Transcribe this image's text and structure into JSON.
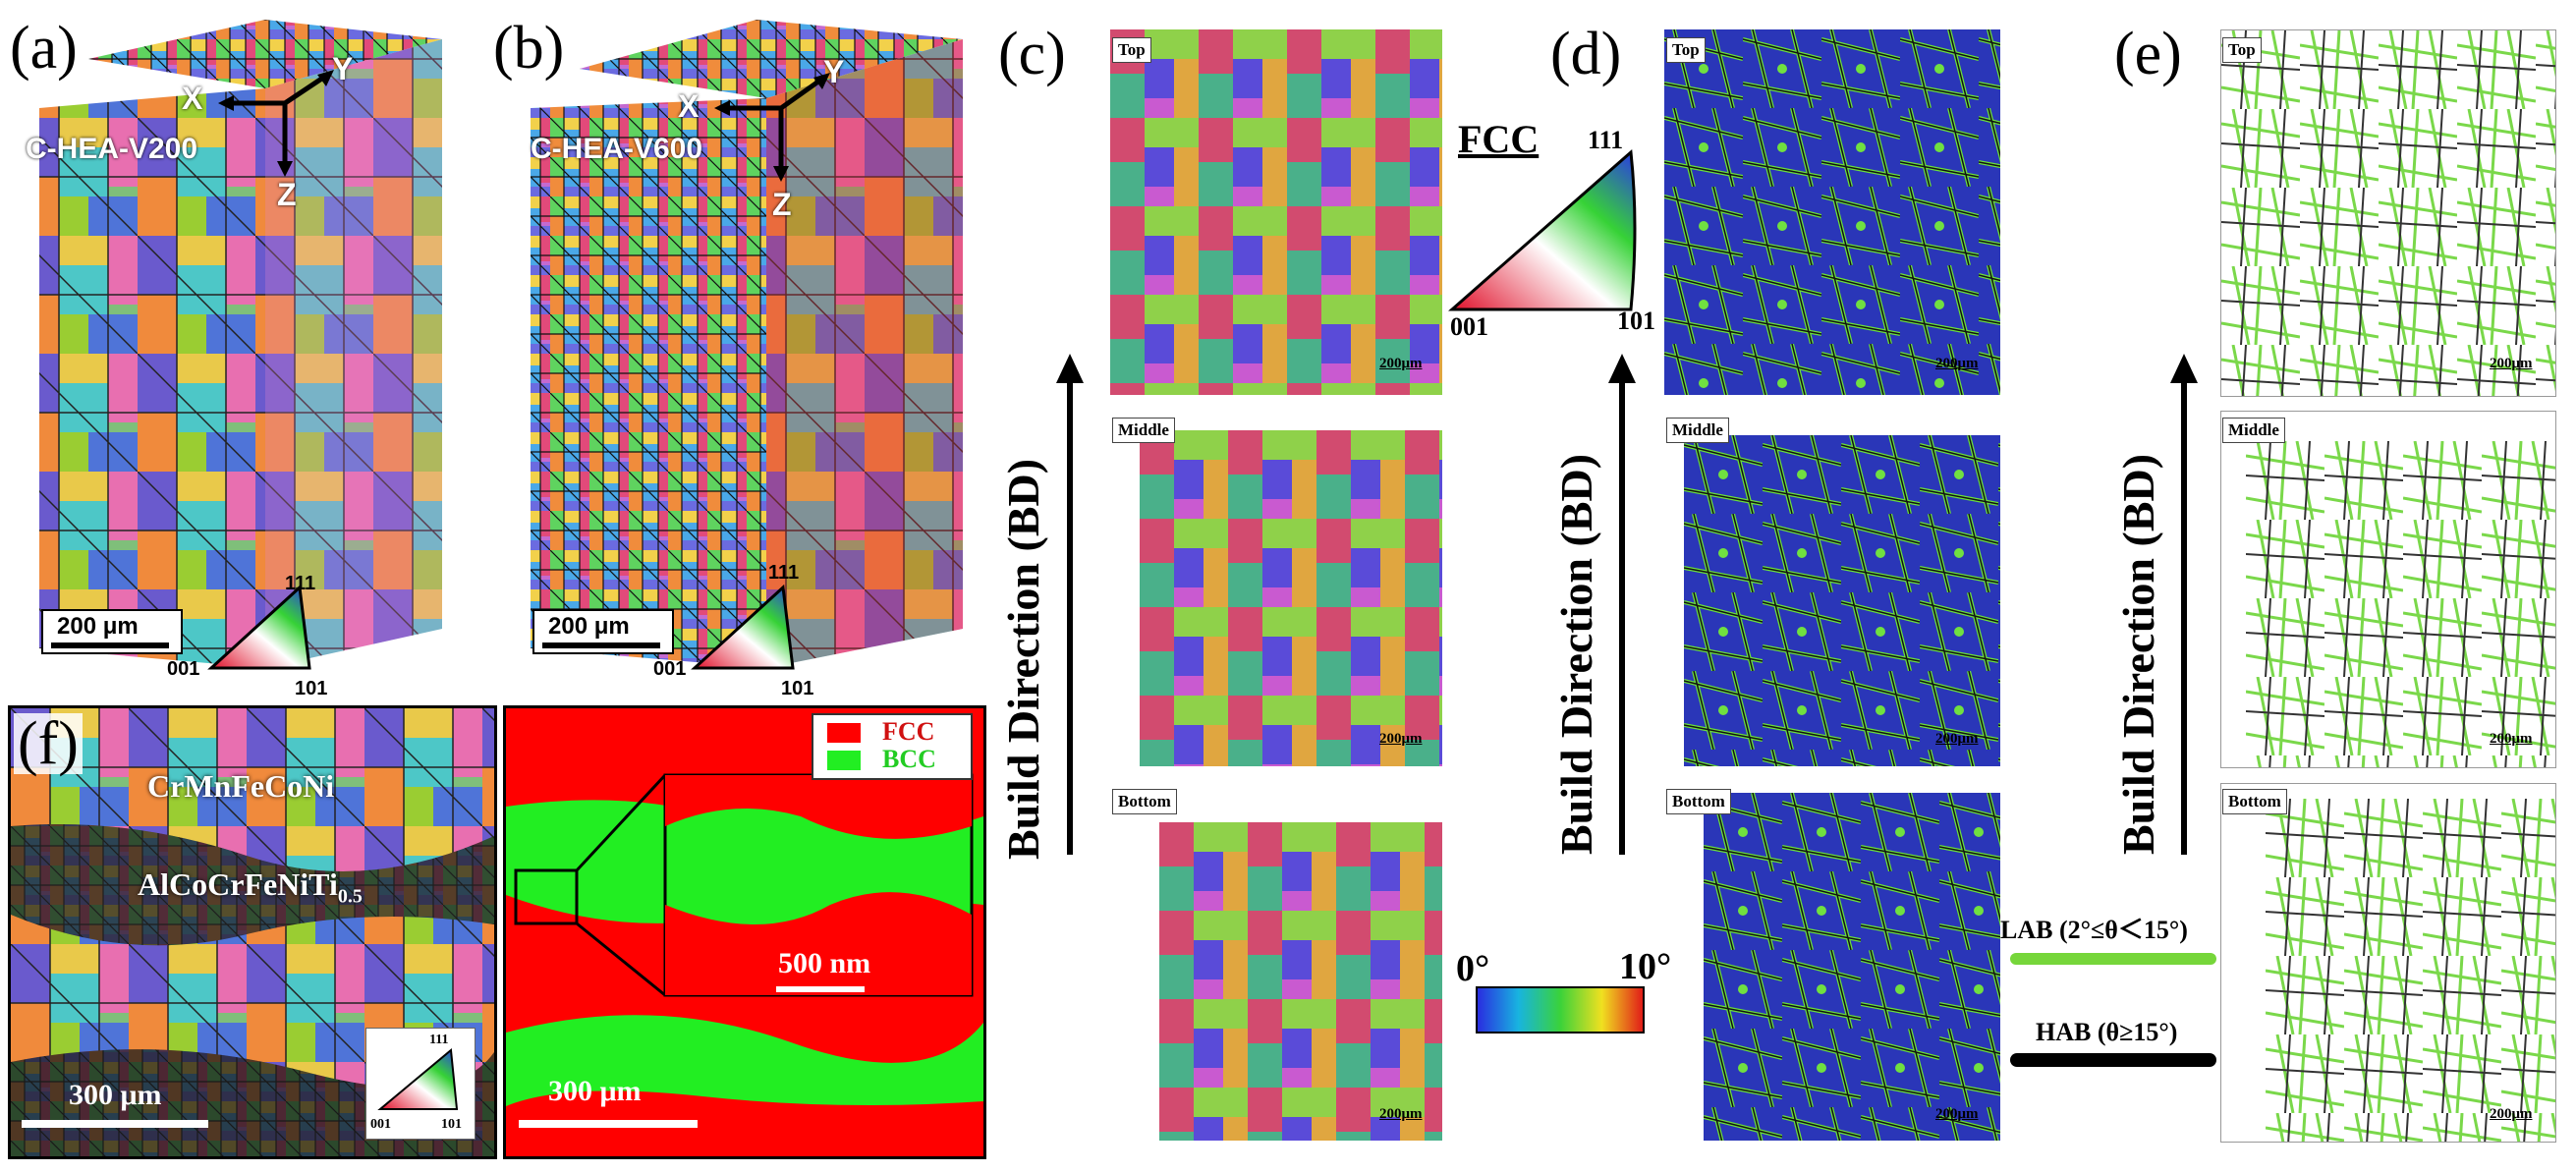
{
  "panel_labels": {
    "a": "(a)",
    "b": "(b)",
    "c": "(c)",
    "d": "(d)",
    "e": "(e)",
    "f": "(f)"
  },
  "panel_a": {
    "sample": "C-HEA-V200",
    "axis_x": "X",
    "axis_y": "Y",
    "axis_z": "Z",
    "scale": "200 μm",
    "ipf_111": "111",
    "ipf_001": "001",
    "ipf_101": "101"
  },
  "panel_b": {
    "sample": "C-HEA-V600",
    "axis_x": "X",
    "axis_y": "Y",
    "axis_z": "Z",
    "scale": "200 μm",
    "ipf_111": "111",
    "ipf_001": "001",
    "ipf_101": "101"
  },
  "build_direction": "Build Direction (BD)",
  "regions": {
    "top": "Top",
    "middle": "Middle",
    "bottom": "Bottom"
  },
  "micron_scale": "200μm",
  "fcc_legend": {
    "title": "FCC",
    "pole_111": "111",
    "pole_001": "001",
    "pole_101": "101"
  },
  "kam_legend": {
    "min": "0°",
    "max": "10°"
  },
  "boundary_legend": {
    "lab": "LAB (2°≤θ＜15°)",
    "hab": "HAB (θ≥15°)",
    "lab_color": "#76d63a",
    "hab_color": "#000000"
  },
  "panel_f_left": {
    "alloy_1": "CrMnFeCoNi",
    "alloy_2": "AlCoCrFeNiTi",
    "alloy_2_sub": "0.5",
    "scale": "300 μm",
    "ipf_111": "111",
    "ipf_001": "001",
    "ipf_101": "101"
  },
  "panel_f_right": {
    "legend_fcc": "FCC",
    "legend_bcc": "BCC",
    "fcc_color": "#ff0000",
    "bcc_color": "#22ee22",
    "inset_scale": "500 nm",
    "scale": "300 μm"
  }
}
